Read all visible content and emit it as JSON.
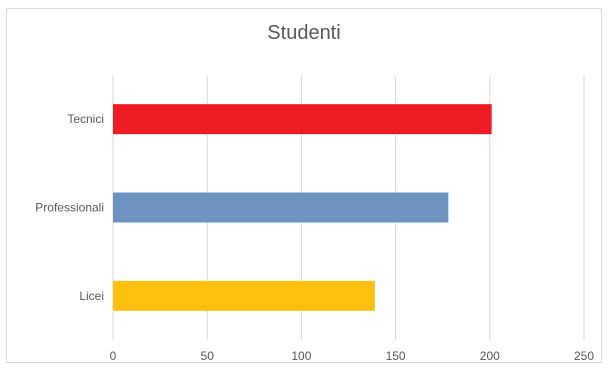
{
  "chart_data": {
    "type": "bar",
    "orientation": "horizontal",
    "title": "Studenti",
    "categories": [
      "Tecnici",
      "Professionali",
      "Licei"
    ],
    "values": [
      201,
      178,
      139
    ],
    "colors": [
      "#ee1c25",
      "#6d94c0",
      "#ffc00f"
    ],
    "xlim": [
      0,
      250
    ],
    "xticks": [
      "0",
      "50",
      "100",
      "150",
      "200",
      "250"
    ],
    "grid": true,
    "legend": "none"
  }
}
